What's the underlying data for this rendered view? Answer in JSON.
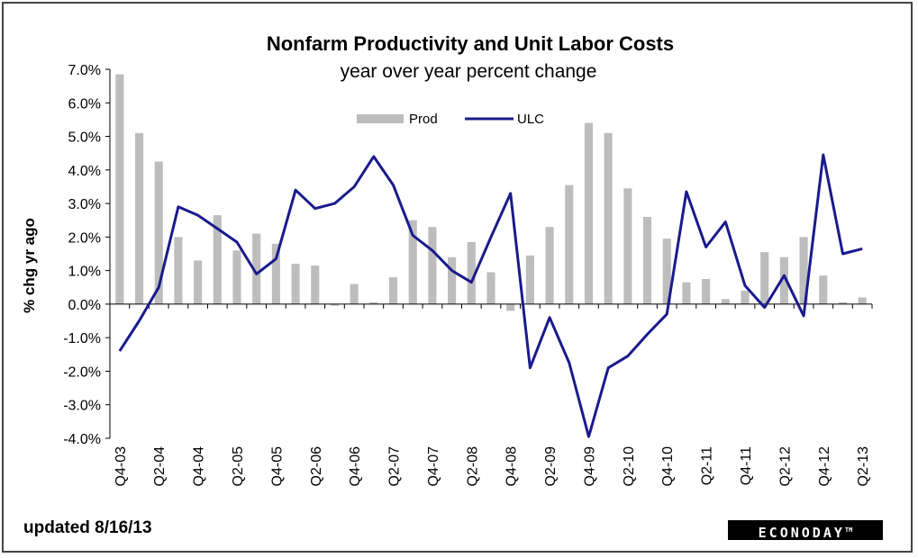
{
  "chart_data": {
    "type": "bar+line",
    "title": "Nonfarm Productivity and Unit Labor Costs",
    "subtitle": "year over year percent change",
    "ylabel": "% chg yr ago",
    "ylim": [
      -4.0,
      7.0
    ],
    "yticks": [
      "7.0%",
      "6.0%",
      "5.0%",
      "4.0%",
      "3.0%",
      "2.0%",
      "1.0%",
      "0.0%",
      "-1.0%",
      "-2.0%",
      "-3.0%",
      "-4.0%"
    ],
    "legend_position": "top-center",
    "quarters": [
      "Q4-03",
      "Q1-04",
      "Q2-04",
      "Q3-04",
      "Q4-04",
      "Q1-05",
      "Q2-05",
      "Q3-05",
      "Q4-05",
      "Q1-06",
      "Q2-06",
      "Q3-06",
      "Q4-06",
      "Q1-07",
      "Q2-07",
      "Q3-07",
      "Q4-07",
      "Q1-08",
      "Q2-08",
      "Q3-08",
      "Q4-08",
      "Q1-09",
      "Q2-09",
      "Q3-09",
      "Q4-09",
      "Q1-10",
      "Q2-10",
      "Q3-10",
      "Q4-10",
      "Q1-11",
      "Q2-11",
      "Q3-11",
      "Q4-11",
      "Q1-12",
      "Q2-12",
      "Q3-12",
      "Q4-12",
      "Q1-13",
      "Q2-13"
    ],
    "series": [
      {
        "name": "Prod",
        "kind": "bar",
        "color": "#bdbdbd",
        "values": [
          6.85,
          5.1,
          4.25,
          2.0,
          1.3,
          2.65,
          1.6,
          2.1,
          1.8,
          1.2,
          1.15,
          -0.05,
          0.6,
          0.05,
          0.8,
          2.5,
          2.3,
          1.4,
          1.85,
          0.95,
          -0.2,
          1.45,
          2.3,
          3.55,
          5.4,
          5.1,
          3.45,
          2.6,
          1.95,
          0.65,
          0.75,
          0.15,
          0.4,
          1.55,
          1.4,
          2.0,
          0.85,
          0.05,
          0.2
        ]
      },
      {
        "name": "ULC",
        "kind": "line",
        "color": "#1a1a8c",
        "values": [
          -1.4,
          -0.5,
          0.5,
          2.9,
          2.65,
          2.25,
          1.85,
          0.9,
          1.35,
          3.4,
          2.85,
          3.0,
          3.5,
          4.4,
          3.55,
          2.05,
          1.6,
          1.0,
          0.65,
          2.0,
          3.3,
          -1.9,
          -0.4,
          -1.75,
          -3.95,
          -1.9,
          -1.55,
          -0.9,
          -0.3,
          3.35,
          1.7,
          2.45,
          0.55,
          -0.1,
          0.85,
          -0.35,
          4.45,
          1.5,
          1.65
        ]
      }
    ],
    "xtick_labels": [
      "Q4-03",
      "Q2-04",
      "Q4-04",
      "Q2-05",
      "Q4-05",
      "Q2-06",
      "Q4-06",
      "Q2-07",
      "Q4-07",
      "Q2-08",
      "Q4-08",
      "Q2-09",
      "Q4-09",
      "Q2-10",
      "Q4-10",
      "Q2-11",
      "Q4-11",
      "Q2-12",
      "Q4-12",
      "Q2-13"
    ]
  },
  "footer": {
    "updated": "updated 8/16/13",
    "brand": "ECONODAY",
    "brand_mark": "TM"
  }
}
